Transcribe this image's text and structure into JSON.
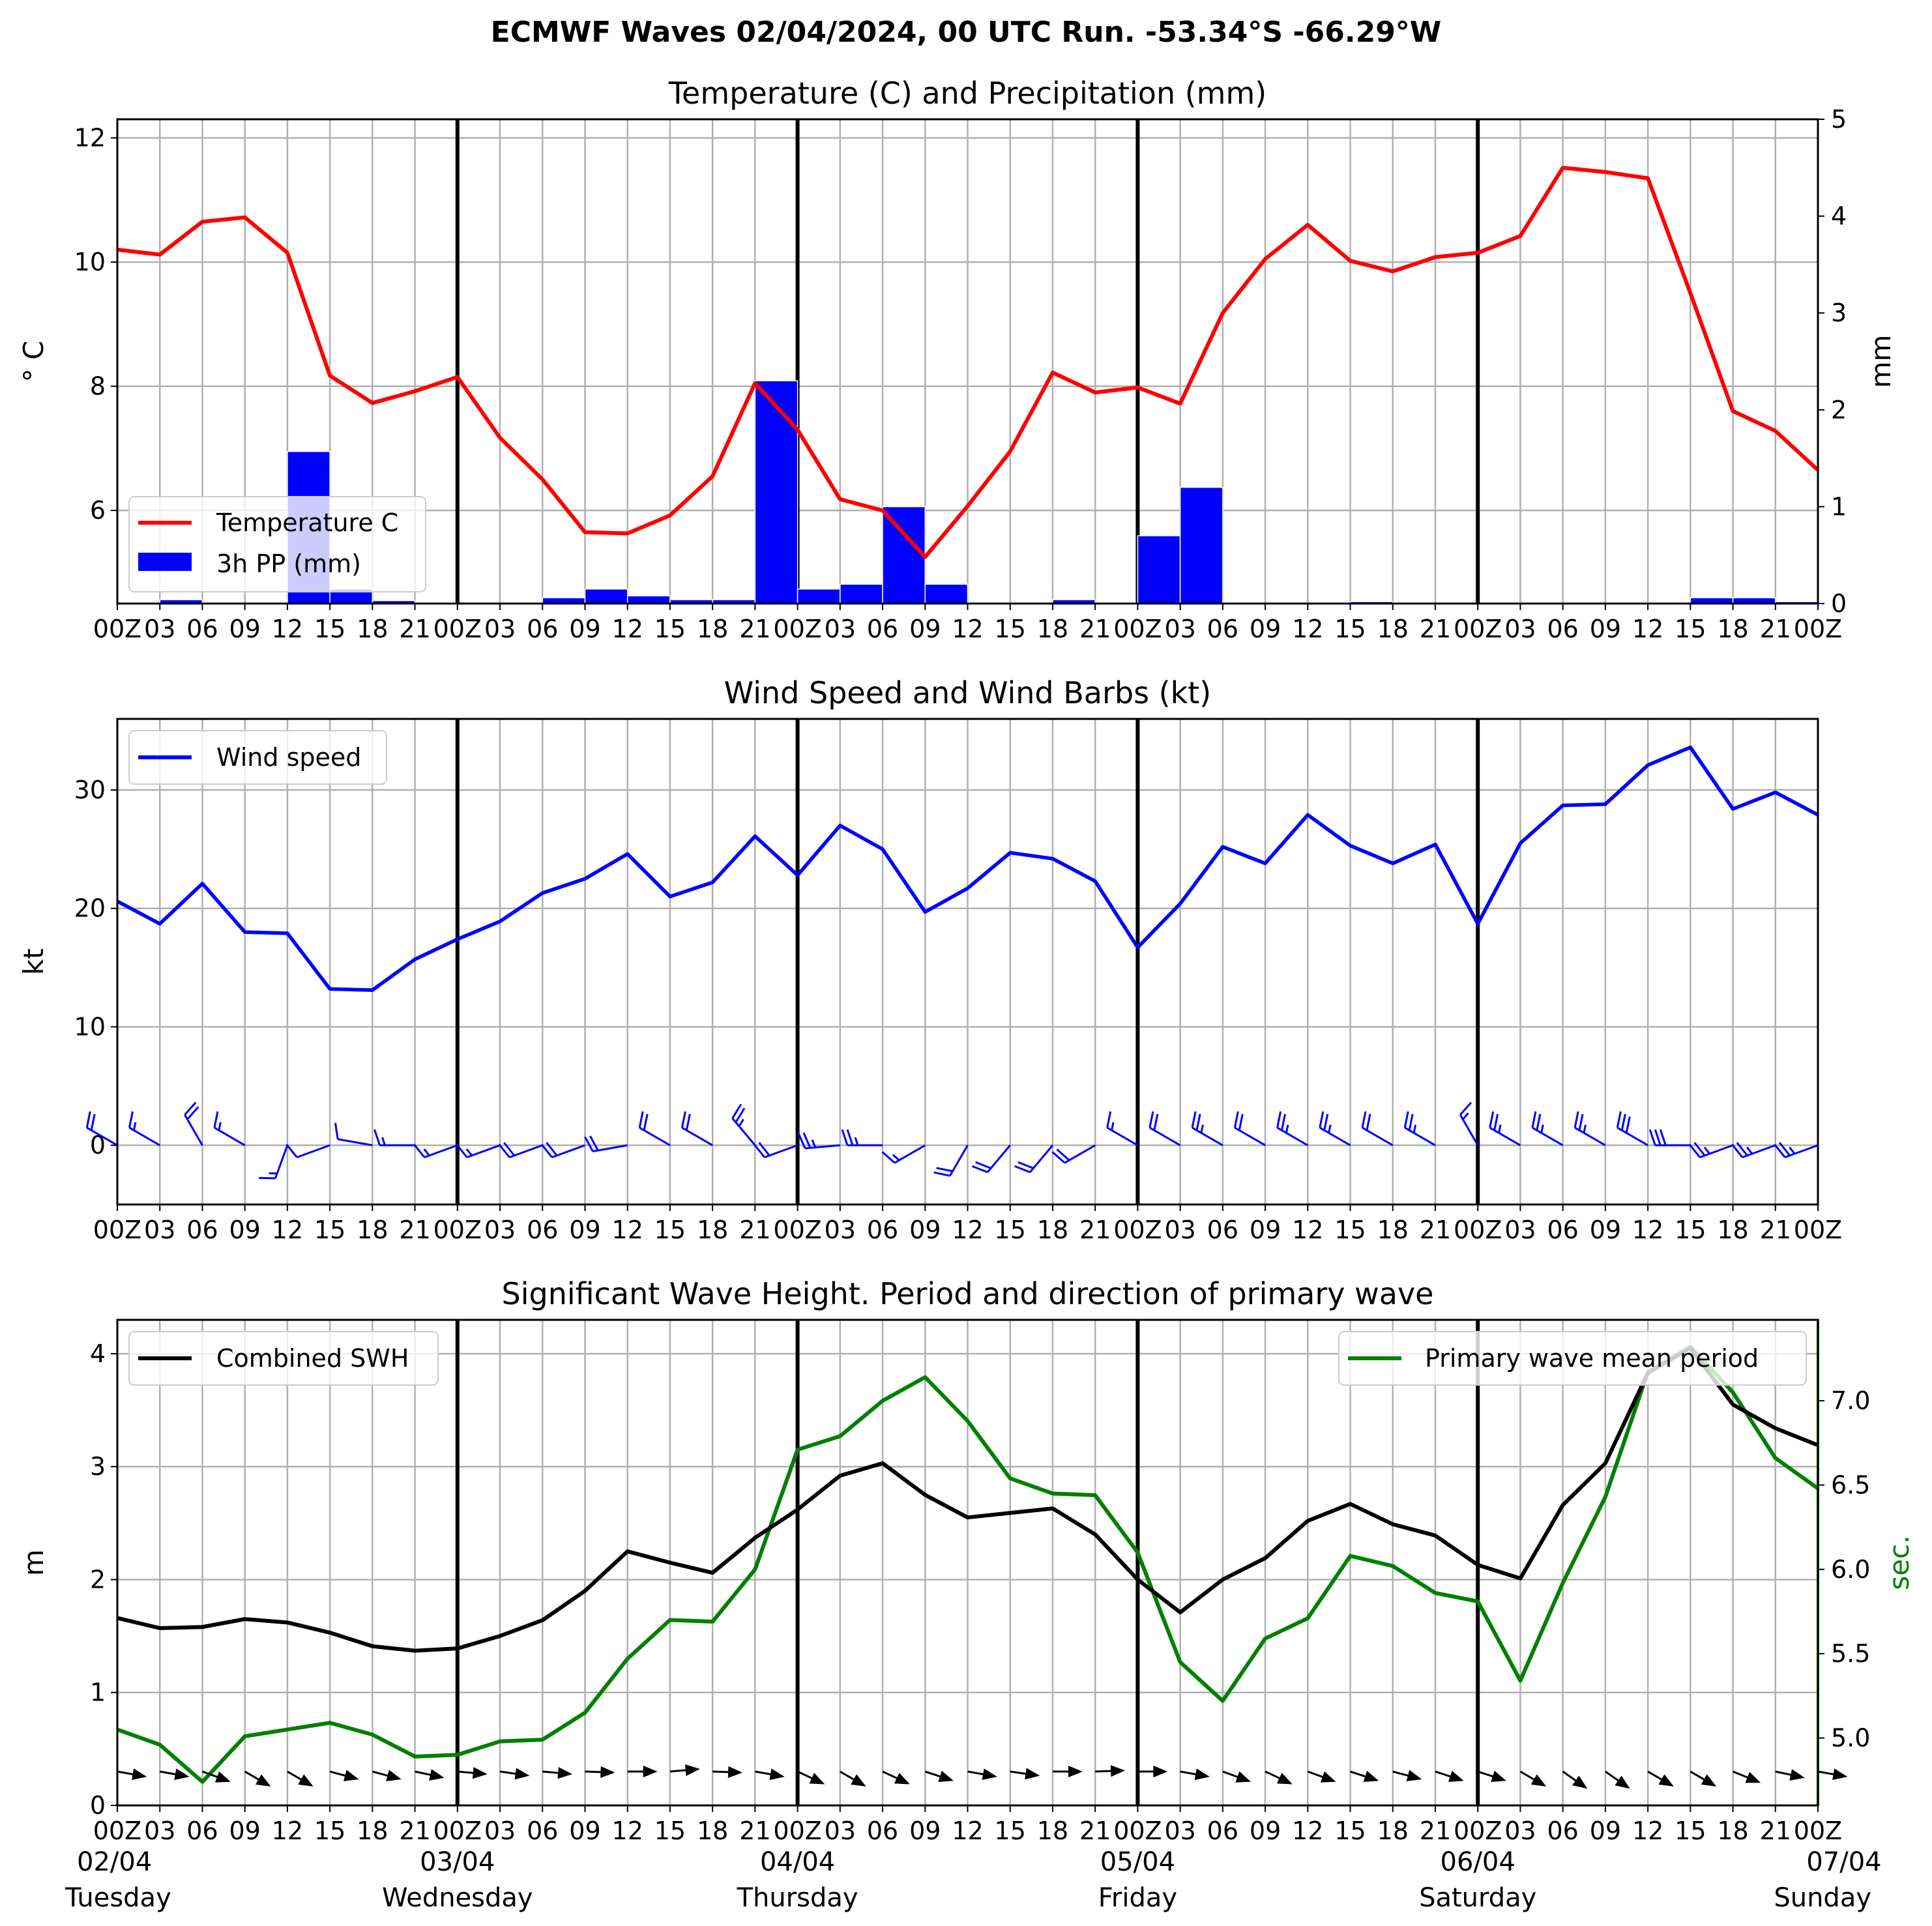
{
  "figure": {
    "title": "ECMWF Waves 02/04/2024, 00 UTC Run. -53.34°S -66.29°W"
  },
  "colors": {
    "temperature": "#ff0000",
    "precip": "#0000ff",
    "wind": "#0000ff",
    "swh": "#000000",
    "period": "#008000",
    "grid": "#b0b0b0",
    "day_line": "#000000"
  },
  "time_axis": {
    "tick_labels": [
      "00Z",
      "03",
      "06",
      "09",
      "12",
      "15",
      "18",
      "21",
      "00Z",
      "03",
      "06",
      "09",
      "12",
      "15",
      "18",
      "21",
      "00Z",
      "03",
      "06",
      "09",
      "12",
      "15",
      "18",
      "21",
      "00Z",
      "03",
      "06",
      "09",
      "12",
      "15",
      "18",
      "21",
      "00Z",
      "03",
      "06",
      "09",
      "12",
      "15",
      "18",
      "21",
      "00Z"
    ],
    "day_labels": [
      {
        "date": "02/04",
        "weekday": "Tuesday"
      },
      {
        "date": "03/04",
        "weekday": "Wednesday"
      },
      {
        "date": "04/04",
        "weekday": "Thursday"
      },
      {
        "date": "05/04",
        "weekday": "Friday"
      },
      {
        "date": "06/04",
        "weekday": "Saturday"
      },
      {
        "date": "07/04",
        "weekday": "Sunday"
      }
    ]
  },
  "chart_data": [
    {
      "type": "line",
      "title": "Temperature (C) and Precipitation (mm)",
      "ylabel": "° C",
      "ylabel_right": "mm",
      "ylim": [
        4.5,
        12.3
      ],
      "ylim_right": [
        0,
        5
      ],
      "yticks": [
        "6",
        "8",
        "10",
        "12"
      ],
      "yticks_right": [
        "0",
        "1",
        "2",
        "3",
        "4",
        "5"
      ],
      "grid": true,
      "legend": "lower-left",
      "series": [
        {
          "name": "Temperature C",
          "type": "line",
          "values": [
            10.2,
            10.12,
            10.65,
            10.72,
            10.15,
            8.17,
            7.73,
            7.92,
            8.15,
            7.17,
            6.5,
            5.65,
            5.63,
            5.92,
            6.55,
            8.05,
            7.3,
            6.18,
            6.0,
            5.25,
            6.07,
            6.95,
            8.22,
            7.9,
            7.98,
            7.72,
            9.18,
            10.05,
            10.6,
            10.02,
            9.85,
            10.08,
            10.15,
            10.42,
            11.52,
            11.45,
            11.35,
            9.5,
            7.6,
            7.28,
            6.65
          ]
        },
        {
          "name": "3h PP (mm)",
          "type": "bar",
          "values": [
            0,
            0.04,
            0,
            0,
            1.57,
            0.15,
            0.03,
            0,
            0,
            0,
            0.06,
            0.15,
            0.08,
            0.04,
            0.04,
            2.3,
            0.15,
            0.2,
            1.0,
            0.2,
            0,
            0,
            0.04,
            0,
            0.7,
            1.2,
            0,
            0,
            0,
            0.02,
            0,
            0,
            0,
            0,
            0,
            0,
            0,
            0.06,
            0.06,
            0.02
          ]
        }
      ]
    },
    {
      "type": "line",
      "title": "Wind Speed and Wind Barbs (kt)",
      "ylabel": "kt",
      "ylim": [
        -5,
        36
      ],
      "yticks": [
        "0",
        "10",
        "20",
        "30"
      ],
      "grid": true,
      "legend": "top-left",
      "series": [
        {
          "name": "Wind speed",
          "values": [
            20.6,
            18.7,
            22.1,
            18.0,
            17.9,
            13.2,
            13.1,
            15.7,
            17.4,
            18.9,
            21.3,
            22.5,
            24.6,
            21.0,
            22.2,
            26.1,
            22.8,
            27.0,
            25.0,
            19.7,
            21.7,
            24.7,
            24.2,
            22.3,
            16.7,
            20.4,
            25.2,
            23.8,
            27.9,
            25.3,
            23.8,
            25.4,
            18.7,
            25.5,
            28.7,
            28.8,
            32.1,
            33.6,
            28.4,
            29.8,
            27.9
          ]
        },
        {
          "name": "barbs",
          "type": "barb",
          "directions_deg_from": [
            300,
            300,
            330,
            300,
            200,
            250,
            280,
            270,
            250,
            250,
            250,
            250,
            260,
            300,
            300,
            320,
            250,
            265,
            270,
            240,
            210,
            220,
            220,
            240,
            300,
            300,
            300,
            300,
            300,
            300,
            300,
            300,
            330,
            300,
            300,
            300,
            300,
            270,
            250,
            250,
            250
          ]
        }
      ]
    },
    {
      "type": "line",
      "title": "Significant Wave Height. Period and direction of primary wave",
      "ylabel": "m",
      "ylabel_right": "sec.",
      "ylim": [
        0,
        4.3
      ],
      "ylim_right": [
        4.6,
        7.48
      ],
      "yticks": [
        "0",
        "1",
        "2",
        "3",
        "4"
      ],
      "yticks_right": [
        "5.0",
        "5.5",
        "6.0",
        "6.5",
        "7.0"
      ],
      "grid": true,
      "series": [
        {
          "name": "Combined SWH",
          "values": [
            1.66,
            1.57,
            1.58,
            1.65,
            1.62,
            1.53,
            1.41,
            1.37,
            1.39,
            1.5,
            1.64,
            1.9,
            2.25,
            2.15,
            2.06,
            2.37,
            2.62,
            2.92,
            3.03,
            2.75,
            2.55,
            2.59,
            2.63,
            2.4,
            2.0,
            1.71,
            2.0,
            2.19,
            2.52,
            2.67,
            2.49,
            2.39,
            2.13,
            2.01,
            2.66,
            3.03,
            3.83,
            4.05,
            3.55,
            3.34,
            3.19
          ]
        },
        {
          "name": "Primary wave mean period",
          "values": [
            5.05,
            4.96,
            4.74,
            5.01,
            5.05,
            5.09,
            5.02,
            4.89,
            4.9,
            4.98,
            4.99,
            5.15,
            5.47,
            5.7,
            5.69,
            6.0,
            6.71,
            6.79,
            7.0,
            7.14,
            6.88,
            6.54,
            6.45,
            6.44,
            6.1,
            5.45,
            5.22,
            5.59,
            5.71,
            6.08,
            6.02,
            5.86,
            5.81,
            5.34,
            5.92,
            6.43,
            7.17,
            7.32,
            7.05,
            6.66,
            6.48
          ]
        },
        {
          "name": "direction",
          "type": "arrows",
          "directions_deg_from": [
            280,
            280,
            290,
            300,
            300,
            285,
            285,
            282,
            275,
            278,
            275,
            272,
            270,
            265,
            272,
            280,
            295,
            300,
            295,
            288,
            280,
            278,
            270,
            268,
            270,
            280,
            290,
            295,
            290,
            288,
            285,
            288,
            288,
            300,
            305,
            305,
            300,
            300,
            292,
            282,
            280
          ]
        }
      ]
    }
  ]
}
